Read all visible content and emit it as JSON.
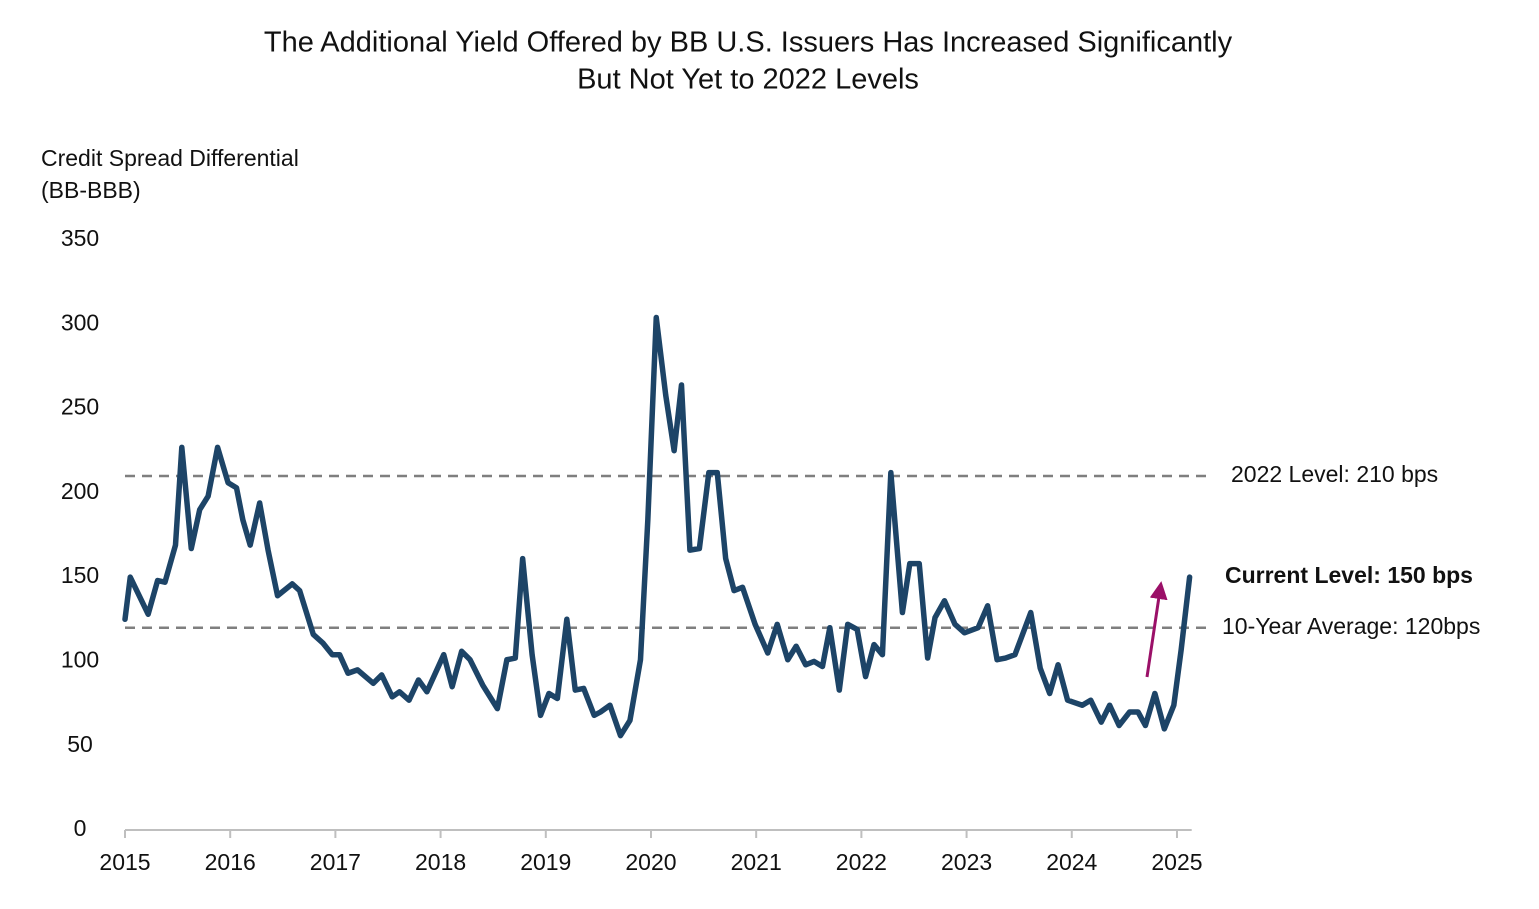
{
  "chart_data": {
    "type": "line",
    "title": [
      "The Additional Yield Offered by BB U.S. Issuers Has Increased Significantly",
      "But Not Yet to 2022 Levels"
    ],
    "y_label": [
      "Credit Spread Differential",
      "(BB-BBB)"
    ],
    "xlim": [
      2015,
      2025.14
    ],
    "xticks": [
      2015,
      2016,
      2017,
      2018,
      2019,
      2020,
      2021,
      2022,
      2023,
      2024,
      2025
    ],
    "ylim": [
      0,
      350
    ],
    "yticks": [
      0,
      50,
      100,
      150,
      200,
      250,
      300,
      350
    ],
    "series": [
      {
        "color": "#1d4467",
        "x": [
          2015.0,
          2015.05,
          2015.22,
          2015.31,
          2015.38,
          2015.48,
          2015.54,
          2015.63,
          2015.71,
          2015.79,
          2015.88,
          2015.98,
          2016.06,
          2016.12,
          2016.19,
          2016.28,
          2016.36,
          2016.45,
          2016.59,
          2016.66,
          2016.79,
          2016.88,
          2016.97,
          2017.04,
          2017.12,
          2017.21,
          2017.36,
          2017.44,
          2017.54,
          2017.61,
          2017.7,
          2017.79,
          2017.87,
          2018.03,
          2018.11,
          2018.2,
          2018.28,
          2018.4,
          2018.54,
          2018.63,
          2018.71,
          2018.78,
          2018.87,
          2018.95,
          2019.03,
          2019.11,
          2019.2,
          2019.28,
          2019.36,
          2019.46,
          2019.52,
          2019.61,
          2019.71,
          2019.8,
          2019.9,
          2019.97,
          2020.05,
          2020.14,
          2020.22,
          2020.29,
          2020.37,
          2020.46,
          2020.55,
          2020.63,
          2020.71,
          2020.79,
          2020.87,
          2020.99,
          2021.11,
          2021.2,
          2021.3,
          2021.38,
          2021.47,
          2021.55,
          2021.63,
          2021.7,
          2021.79,
          2021.87,
          2021.96,
          2022.04,
          2022.12,
          2022.2,
          2022.28,
          2022.39,
          2022.46,
          2022.55,
          2022.63,
          2022.7,
          2022.79,
          2022.89,
          2022.98,
          2023.11,
          2023.2,
          2023.29,
          2023.37,
          2023.46,
          2023.61,
          2023.7,
          2023.79,
          2023.87,
          2023.96,
          2024.1,
          2024.18,
          2024.28,
          2024.36,
          2024.45,
          2024.55,
          2024.63,
          2024.7,
          2024.79,
          2024.88,
          2024.97,
          2025.04,
          2025.12
        ],
        "values": [
          125,
          150,
          128,
          148,
          147,
          169,
          227,
          167,
          190,
          198,
          227,
          206,
          203,
          184,
          169,
          194,
          166,
          139,
          146,
          142,
          116,
          111,
          104,
          104,
          93,
          95,
          87,
          92,
          79,
          82,
          77,
          89,
          82,
          104,
          85,
          106,
          101,
          86,
          72,
          101,
          102,
          161,
          104,
          68,
          81,
          78,
          125,
          83,
          84,
          68,
          70,
          74,
          56,
          65,
          101,
          184,
          304,
          258,
          225,
          264,
          166,
          167,
          212,
          212,
          161,
          142,
          144,
          122,
          105,
          122,
          101,
          109,
          98,
          100,
          97,
          120,
          83,
          122,
          119,
          91,
          110,
          104,
          212,
          129,
          158,
          158,
          102,
          126,
          136,
          122,
          117,
          120,
          133,
          101,
          102,
          104,
          129,
          96,
          81,
          98,
          77,
          74,
          77,
          64,
          74,
          62,
          70,
          70,
          62,
          81,
          60,
          74,
          107,
          150
        ]
      }
    ],
    "reference_lines": [
      {
        "label": "2022 Level: 210 bps",
        "value": 210,
        "color": "#7f7f7f"
      },
      {
        "label": "10-Year Average: 120bps",
        "value": 120,
        "color": "#7f7f7f"
      }
    ],
    "annotation": "Current Level: 150 bps",
    "arrow_color": "#9b1068"
  }
}
